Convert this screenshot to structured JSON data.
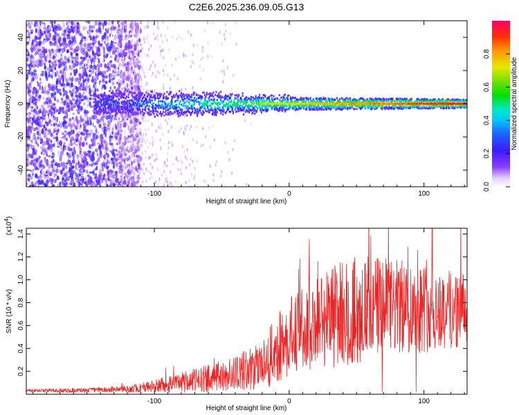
{
  "title": "C2E6.2025.236.09.05.G13",
  "colors": {
    "snr_line": "#ee2222",
    "axis": "#000000"
  },
  "chart_data": [
    {
      "type": "heatmap",
      "name": "spectrogram",
      "xlabel": "Height of straight line (km)",
      "ylabel": "Frequency (Hz)",
      "xlim": [
        -195,
        132
      ],
      "ylim": [
        -50,
        50
      ],
      "x_ticks": [
        -100,
        0,
        100
      ],
      "x_tick_labels": [
        "-100",
        "0",
        "100"
      ],
      "y_ticks": [
        -40,
        -20,
        0,
        20,
        40
      ],
      "y_tick_labels": [
        "-40",
        "-20",
        "0",
        "20",
        "40"
      ],
      "description_of_field": {
        "noise_region_x": [
          -195,
          -118
        ],
        "signal_center_freq_hz": 0,
        "signal_halfwidth_hz_at_x": [
          [
            -140,
            5
          ],
          [
            -60,
            5
          ],
          [
            0,
            3
          ],
          [
            130,
            2
          ]
        ]
      },
      "colorbar": {
        "label": "Normalized spectral amplitude",
        "range": [
          0,
          1
        ],
        "ticks": [
          0.0,
          0.2,
          0.4,
          0.6,
          0.8
        ],
        "tick_labels": [
          "0.0",
          "0.2",
          "0.4",
          "0.6",
          "0.8"
        ]
      }
    },
    {
      "type": "line",
      "name": "snr",
      "xlabel": "Height of straight line (km)",
      "ylabel": "SNR (10 * v/v)",
      "scale_label": "(x10",
      "scale_exp": "4",
      "scale_close": ")",
      "xlim": [
        -195,
        132
      ],
      "ylim": [
        0,
        14500
      ],
      "x_ticks": [
        -100,
        0,
        100
      ],
      "x_tick_labels": [
        "-100",
        "0",
        "100"
      ],
      "y_ticks": [
        2000,
        4000,
        6000,
        8000,
        10000,
        12000,
        14000
      ],
      "y_tick_labels": [
        "0.2",
        "0.4",
        "0.6",
        "0.8",
        "1.0",
        "1.2",
        "1.4"
      ],
      "envelope_x": [
        -195,
        -150,
        -120,
        -100,
        -80,
        -60,
        -40,
        -20,
        -10,
        0,
        20,
        40,
        60,
        80,
        100,
        120,
        132
      ],
      "envelope_mean": [
        300,
        350,
        450,
        700,
        1000,
        1400,
        1800,
        2600,
        3800,
        5000,
        6400,
        7200,
        7500,
        7600,
        7600,
        7400,
        7300
      ],
      "envelope_spread": [
        150,
        200,
        300,
        600,
        900,
        1200,
        1500,
        2200,
        3000,
        3400,
        4200,
        4800,
        4600,
        4200,
        4000,
        3600,
        3200
      ]
    }
  ]
}
